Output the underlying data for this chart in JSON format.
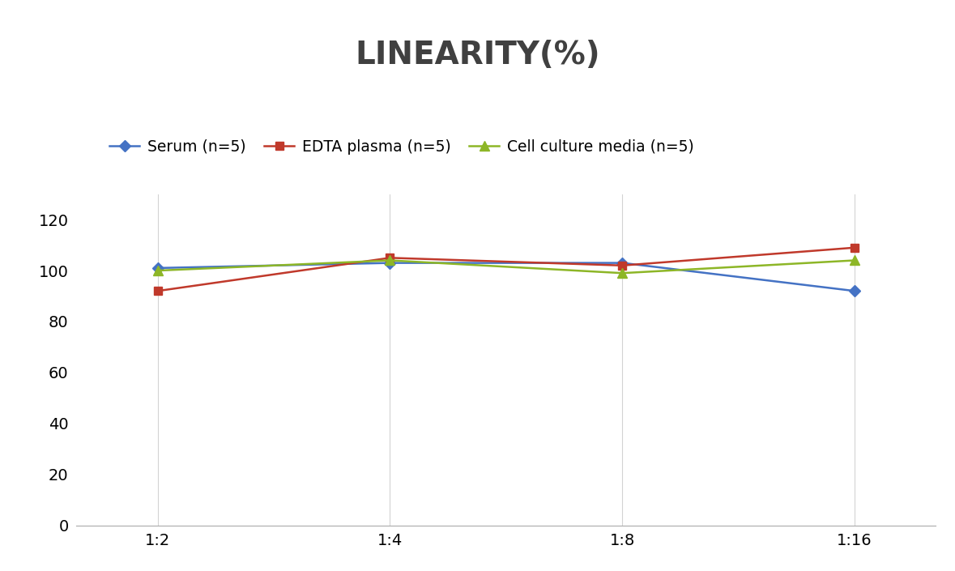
{
  "title": "LINEARITY(%)",
  "title_fontsize": 28,
  "title_fontweight": "bold",
  "title_color": "#404040",
  "x_labels": [
    "1:2",
    "1:4",
    "1:8",
    "1:16"
  ],
  "x_positions": [
    0,
    1,
    2,
    3
  ],
  "series": [
    {
      "label": "Serum (n=5)",
      "values": [
        101,
        103,
        103,
        92
      ],
      "color": "#4472C4",
      "marker": "D",
      "markersize": 7,
      "linewidth": 1.8
    },
    {
      "label": "EDTA plasma (n=5)",
      "values": [
        92,
        105,
        102,
        109
      ],
      "color": "#C0392B",
      "marker": "s",
      "markersize": 7,
      "linewidth": 1.8
    },
    {
      "label": "Cell culture media (n=5)",
      "values": [
        100,
        104,
        99,
        104
      ],
      "color": "#8DB627",
      "marker": "^",
      "markersize": 8,
      "linewidth": 1.8
    }
  ],
  "ylim": [
    0,
    130
  ],
  "yticks": [
    0,
    20,
    40,
    60,
    80,
    100,
    120
  ],
  "xlim": [
    -0.35,
    3.35
  ],
  "grid_color": "#D3D3D3",
  "background_color": "#FFFFFF",
  "legend_fontsize": 13.5,
  "tick_fontsize": 14,
  "spine_color": "#AAAAAA"
}
